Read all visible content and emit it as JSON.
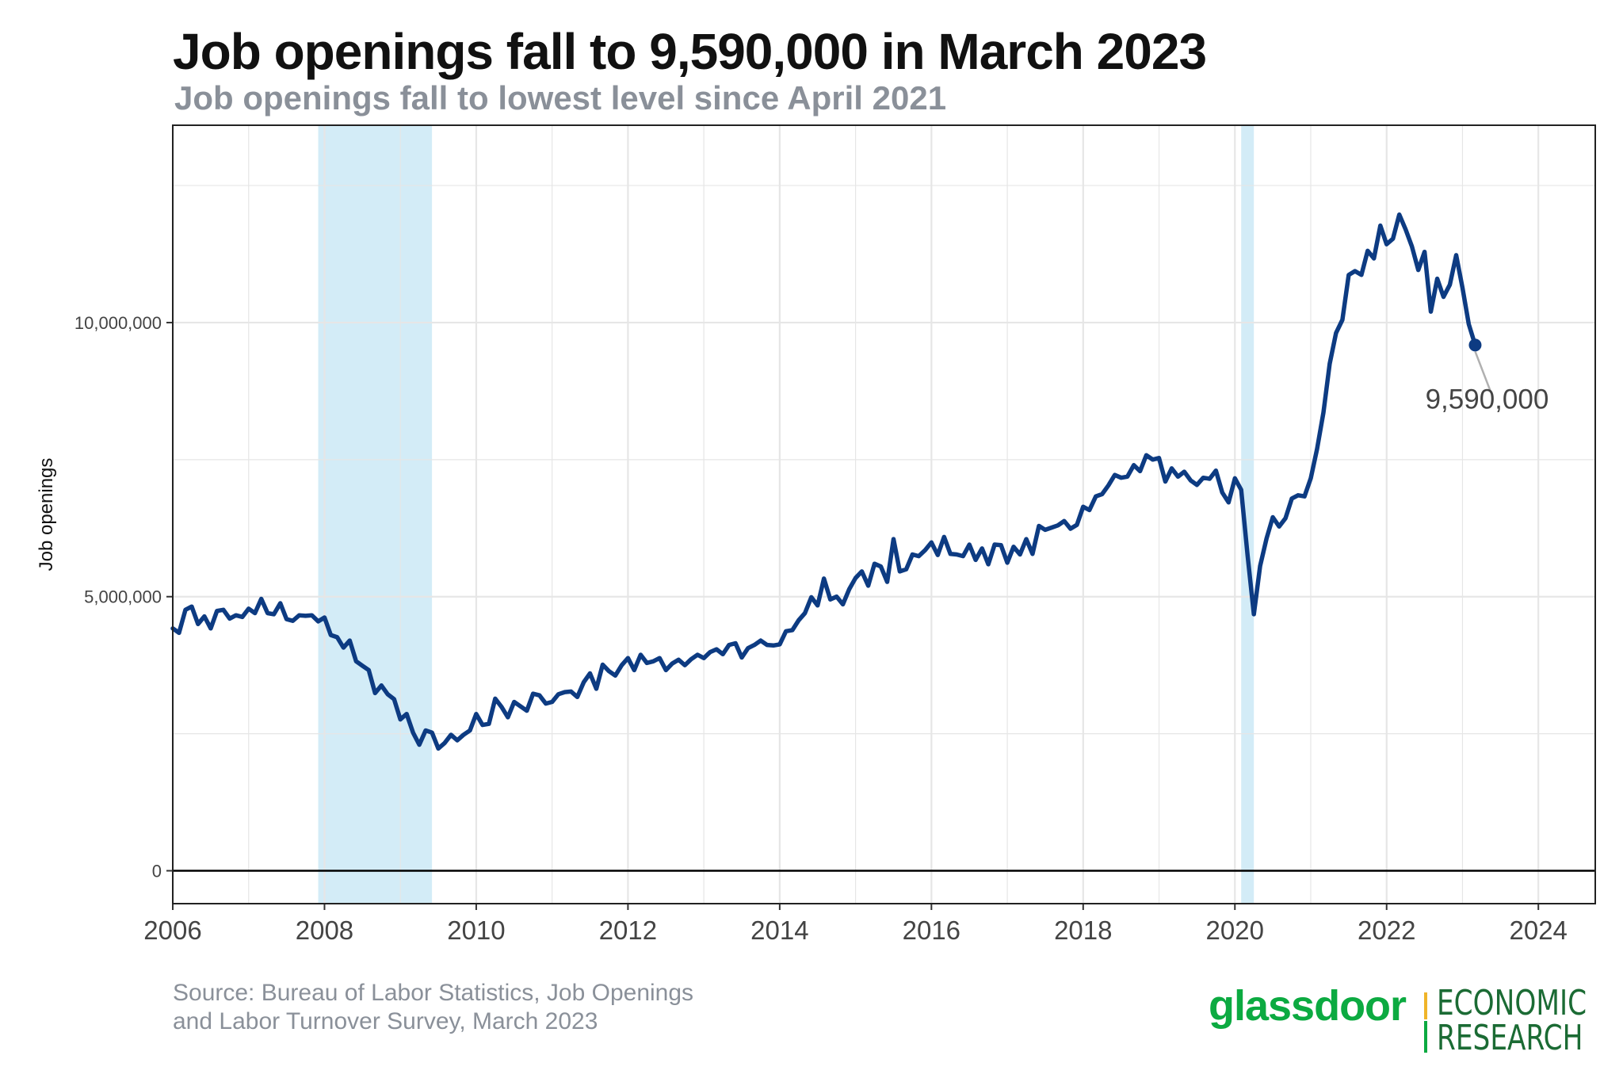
{
  "header": {
    "title": "Job openings fall to 9,590,000 in March 2023",
    "subtitle": "Job openings fall to lowest level since April 2021"
  },
  "footer": {
    "source_line1": "Source: Bureau of Labor Statistics, Job Openings",
    "source_line2": "and Labor Turnover Survey, March 2023"
  },
  "logo": {
    "brand": "glassdoor",
    "line1": "ECONOMIC",
    "line2": "RESEARCH"
  },
  "colors": {
    "line": "#0d3b82",
    "recession": "#d3ecf7",
    "grid": "#e6e6e6",
    "zero_line": "#000000",
    "annotation_leader": "#b0b0b0",
    "brand_green": "#0caa41",
    "brand_yellow": "#f0b429"
  },
  "chart_data": {
    "type": "line",
    "title": "Job openings fall to 9,590,000 in March 2023",
    "subtitle": "Job openings fall to lowest level since April 2021",
    "xlabel": "",
    "ylabel": "Job openings",
    "xlim": [
      2006,
      2024.75
    ],
    "ylim": [
      -600000,
      13600000
    ],
    "x_ticks": [
      2006,
      2008,
      2010,
      2012,
      2014,
      2016,
      2018,
      2020,
      2022,
      2024
    ],
    "x_tick_labels": [
      "2006",
      "2008",
      "2010",
      "2012",
      "2014",
      "2016",
      "2018",
      "2020",
      "2022",
      "2024"
    ],
    "y_ticks": [
      0,
      5000000,
      10000000
    ],
    "y_tick_labels": [
      "0",
      "5,000,000",
      "10,000,000"
    ],
    "grid": true,
    "recessions": [
      [
        2007.917,
        2009.417
      ],
      [
        2020.083,
        2020.25
      ]
    ],
    "annotation": {
      "x": 2023.167,
      "y": 9590000,
      "label": "9,590,000"
    },
    "series": [
      {
        "points": [
          [
            2006.0,
            4420000
          ],
          [
            2006.083,
            4340000
          ],
          [
            2006.167,
            4760000
          ],
          [
            2006.25,
            4820000
          ],
          [
            2006.333,
            4500000
          ],
          [
            2006.417,
            4640000
          ],
          [
            2006.5,
            4420000
          ],
          [
            2006.583,
            4740000
          ],
          [
            2006.667,
            4760000
          ],
          [
            2006.75,
            4600000
          ],
          [
            2006.833,
            4660000
          ],
          [
            2006.917,
            4630000
          ],
          [
            2007.0,
            4780000
          ],
          [
            2007.083,
            4700000
          ],
          [
            2007.167,
            4960000
          ],
          [
            2007.25,
            4700000
          ],
          [
            2007.333,
            4680000
          ],
          [
            2007.417,
            4880000
          ],
          [
            2007.5,
            4590000
          ],
          [
            2007.583,
            4560000
          ],
          [
            2007.667,
            4660000
          ],
          [
            2007.75,
            4650000
          ],
          [
            2007.833,
            4660000
          ],
          [
            2007.917,
            4550000
          ],
          [
            2008.0,
            4620000
          ],
          [
            2008.083,
            4300000
          ],
          [
            2008.167,
            4260000
          ],
          [
            2008.25,
            4070000
          ],
          [
            2008.333,
            4200000
          ],
          [
            2008.417,
            3820000
          ],
          [
            2008.5,
            3740000
          ],
          [
            2008.583,
            3660000
          ],
          [
            2008.667,
            3240000
          ],
          [
            2008.75,
            3380000
          ],
          [
            2008.833,
            3220000
          ],
          [
            2008.917,
            3130000
          ],
          [
            2009.0,
            2760000
          ],
          [
            2009.083,
            2860000
          ],
          [
            2009.167,
            2520000
          ],
          [
            2009.25,
            2300000
          ],
          [
            2009.333,
            2560000
          ],
          [
            2009.417,
            2520000
          ],
          [
            2009.5,
            2230000
          ],
          [
            2009.583,
            2330000
          ],
          [
            2009.667,
            2480000
          ],
          [
            2009.75,
            2380000
          ],
          [
            2009.833,
            2480000
          ],
          [
            2009.917,
            2560000
          ],
          [
            2010.0,
            2860000
          ],
          [
            2010.083,
            2660000
          ],
          [
            2010.167,
            2680000
          ],
          [
            2010.25,
            3140000
          ],
          [
            2010.333,
            2990000
          ],
          [
            2010.417,
            2800000
          ],
          [
            2010.5,
            3080000
          ],
          [
            2010.583,
            3000000
          ],
          [
            2010.667,
            2920000
          ],
          [
            2010.75,
            3230000
          ],
          [
            2010.833,
            3200000
          ],
          [
            2010.917,
            3050000
          ],
          [
            2011.0,
            3080000
          ],
          [
            2011.083,
            3220000
          ],
          [
            2011.167,
            3260000
          ],
          [
            2011.25,
            3270000
          ],
          [
            2011.333,
            3170000
          ],
          [
            2011.417,
            3440000
          ],
          [
            2011.5,
            3600000
          ],
          [
            2011.583,
            3320000
          ],
          [
            2011.667,
            3760000
          ],
          [
            2011.75,
            3640000
          ],
          [
            2011.833,
            3560000
          ],
          [
            2011.917,
            3750000
          ],
          [
            2012.0,
            3880000
          ],
          [
            2012.083,
            3660000
          ],
          [
            2012.167,
            3940000
          ],
          [
            2012.25,
            3790000
          ],
          [
            2012.333,
            3820000
          ],
          [
            2012.417,
            3880000
          ],
          [
            2012.5,
            3660000
          ],
          [
            2012.583,
            3780000
          ],
          [
            2012.667,
            3850000
          ],
          [
            2012.75,
            3750000
          ],
          [
            2012.833,
            3860000
          ],
          [
            2012.917,
            3940000
          ],
          [
            2013.0,
            3880000
          ],
          [
            2013.083,
            3990000
          ],
          [
            2013.167,
            4040000
          ],
          [
            2013.25,
            3950000
          ],
          [
            2013.333,
            4120000
          ],
          [
            2013.417,
            4150000
          ],
          [
            2013.5,
            3890000
          ],
          [
            2013.583,
            4060000
          ],
          [
            2013.667,
            4120000
          ],
          [
            2013.75,
            4200000
          ],
          [
            2013.833,
            4120000
          ],
          [
            2013.917,
            4110000
          ],
          [
            2014.0,
            4130000
          ],
          [
            2014.083,
            4370000
          ],
          [
            2014.167,
            4390000
          ],
          [
            2014.25,
            4570000
          ],
          [
            2014.333,
            4700000
          ],
          [
            2014.417,
            4990000
          ],
          [
            2014.5,
            4840000
          ],
          [
            2014.583,
            5330000
          ],
          [
            2014.667,
            4950000
          ],
          [
            2014.75,
            5000000
          ],
          [
            2014.833,
            4860000
          ],
          [
            2014.917,
            5140000
          ],
          [
            2015.0,
            5340000
          ],
          [
            2015.083,
            5460000
          ],
          [
            2015.167,
            5200000
          ],
          [
            2015.25,
            5600000
          ],
          [
            2015.333,
            5550000
          ],
          [
            2015.417,
            5270000
          ],
          [
            2015.5,
            6050000
          ],
          [
            2015.583,
            5460000
          ],
          [
            2015.667,
            5500000
          ],
          [
            2015.75,
            5770000
          ],
          [
            2015.833,
            5740000
          ],
          [
            2015.917,
            5850000
          ],
          [
            2016.0,
            5990000
          ],
          [
            2016.083,
            5760000
          ],
          [
            2016.167,
            6090000
          ],
          [
            2016.25,
            5780000
          ],
          [
            2016.333,
            5770000
          ],
          [
            2016.417,
            5740000
          ],
          [
            2016.5,
            5950000
          ],
          [
            2016.583,
            5670000
          ],
          [
            2016.667,
            5880000
          ],
          [
            2016.75,
            5590000
          ],
          [
            2016.833,
            5950000
          ],
          [
            2016.917,
            5940000
          ],
          [
            2017.0,
            5620000
          ],
          [
            2017.083,
            5910000
          ],
          [
            2017.167,
            5770000
          ],
          [
            2017.25,
            6050000
          ],
          [
            2017.333,
            5780000
          ],
          [
            2017.417,
            6290000
          ],
          [
            2017.5,
            6220000
          ],
          [
            2017.583,
            6260000
          ],
          [
            2017.667,
            6300000
          ],
          [
            2017.75,
            6380000
          ],
          [
            2017.833,
            6240000
          ],
          [
            2017.917,
            6310000
          ],
          [
            2018.0,
            6640000
          ],
          [
            2018.083,
            6580000
          ],
          [
            2018.167,
            6830000
          ],
          [
            2018.25,
            6870000
          ],
          [
            2018.333,
            7030000
          ],
          [
            2018.417,
            7220000
          ],
          [
            2018.5,
            7170000
          ],
          [
            2018.583,
            7190000
          ],
          [
            2018.667,
            7400000
          ],
          [
            2018.75,
            7290000
          ],
          [
            2018.833,
            7580000
          ],
          [
            2018.917,
            7500000
          ],
          [
            2019.0,
            7530000
          ],
          [
            2019.083,
            7100000
          ],
          [
            2019.167,
            7340000
          ],
          [
            2019.25,
            7190000
          ],
          [
            2019.333,
            7280000
          ],
          [
            2019.417,
            7120000
          ],
          [
            2019.5,
            7040000
          ],
          [
            2019.583,
            7170000
          ],
          [
            2019.667,
            7150000
          ],
          [
            2019.75,
            7300000
          ],
          [
            2019.833,
            6900000
          ],
          [
            2019.917,
            6720000
          ],
          [
            2020.0,
            7160000
          ],
          [
            2020.083,
            6950000
          ],
          [
            2020.167,
            5750000
          ],
          [
            2020.25,
            4680000
          ],
          [
            2020.333,
            5560000
          ],
          [
            2020.417,
            6060000
          ],
          [
            2020.5,
            6450000
          ],
          [
            2020.583,
            6280000
          ],
          [
            2020.667,
            6430000
          ],
          [
            2020.75,
            6790000
          ],
          [
            2020.833,
            6850000
          ],
          [
            2020.917,
            6830000
          ],
          [
            2021.0,
            7160000
          ],
          [
            2021.083,
            7690000
          ],
          [
            2021.167,
            8360000
          ],
          [
            2021.25,
            9250000
          ],
          [
            2021.333,
            9810000
          ],
          [
            2021.417,
            10050000
          ],
          [
            2021.5,
            10870000
          ],
          [
            2021.583,
            10940000
          ],
          [
            2021.667,
            10870000
          ],
          [
            2021.75,
            11310000
          ],
          [
            2021.833,
            11170000
          ],
          [
            2021.917,
            11770000
          ],
          [
            2022.0,
            11430000
          ],
          [
            2022.083,
            11530000
          ],
          [
            2022.167,
            11970000
          ],
          [
            2022.25,
            11700000
          ],
          [
            2022.333,
            11390000
          ],
          [
            2022.417,
            10960000
          ],
          [
            2022.5,
            11290000
          ],
          [
            2022.583,
            10200000
          ],
          [
            2022.667,
            10800000
          ],
          [
            2022.75,
            10470000
          ],
          [
            2022.833,
            10690000
          ],
          [
            2022.917,
            11230000
          ],
          [
            2023.0,
            10630000
          ],
          [
            2023.083,
            9970000
          ],
          [
            2023.167,
            9590000
          ]
        ]
      }
    ]
  }
}
